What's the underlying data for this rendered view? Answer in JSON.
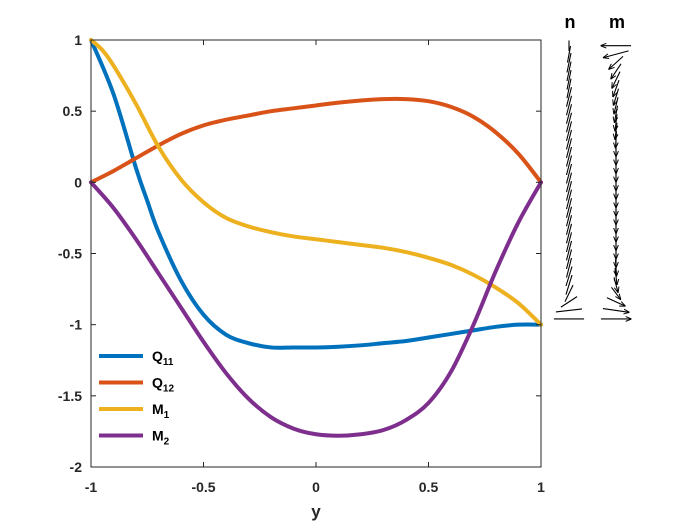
{
  "chart_data": {
    "type": "line",
    "title": "",
    "xlabel": "y",
    "ylabel": "",
    "xlim": [
      -1,
      1
    ],
    "ylim": [
      -2,
      1
    ],
    "xticks": [
      -1,
      -0.5,
      0,
      0.5,
      1
    ],
    "yticks": [
      1,
      0.5,
      0,
      -0.5,
      -1,
      -1.5,
      -2
    ],
    "xtick_labels": [
      "-1",
      "-0.5",
      "0",
      "0.5",
      "1"
    ],
    "ytick_labels": [
      "1",
      "0.5",
      "0",
      "-0.5",
      "-1",
      "-1.5",
      "-2"
    ],
    "grid": false,
    "legend_position": "bottom-left",
    "series": [
      {
        "name": "Q",
        "sub": "11",
        "color": "#0072BD",
        "x": [
          -1,
          -0.9,
          -0.8,
          -0.75,
          -0.7,
          -0.6,
          -0.5,
          -0.4,
          -0.3,
          -0.2,
          -0.1,
          0,
          0.1,
          0.2,
          0.3,
          0.4,
          0.5,
          0.6,
          0.7,
          0.8,
          0.9,
          1
        ],
        "y": [
          1,
          0.62,
          0.1,
          -0.13,
          -0.35,
          -0.69,
          -0.93,
          -1.07,
          -1.13,
          -1.16,
          -1.16,
          -1.16,
          -1.155,
          -1.145,
          -1.13,
          -1.115,
          -1.09,
          -1.065,
          -1.04,
          -1.015,
          -1.0,
          -1.0
        ]
      },
      {
        "name": "Q",
        "sub": "12",
        "color": "#D95319",
        "x": [
          -1,
          -0.9,
          -0.8,
          -0.7,
          -0.6,
          -0.5,
          -0.4,
          -0.3,
          -0.2,
          -0.1,
          0,
          0.1,
          0.2,
          0.3,
          0.4,
          0.5,
          0.6,
          0.7,
          0.8,
          0.9,
          1
        ],
        "y": [
          0,
          0.08,
          0.17,
          0.26,
          0.34,
          0.4,
          0.44,
          0.47,
          0.5,
          0.52,
          0.54,
          0.56,
          0.575,
          0.585,
          0.585,
          0.57,
          0.53,
          0.46,
          0.35,
          0.2,
          0
        ]
      },
      {
        "name": "M",
        "sub": "1",
        "color": "#EDB120",
        "x": [
          -1,
          -0.95,
          -0.9,
          -0.8,
          -0.7,
          -0.6,
          -0.5,
          -0.4,
          -0.3,
          -0.2,
          -0.1,
          0,
          0.1,
          0.2,
          0.3,
          0.4,
          0.5,
          0.6,
          0.7,
          0.8,
          0.9,
          1
        ],
        "y": [
          1,
          0.93,
          0.82,
          0.55,
          0.25,
          0.02,
          -0.14,
          -0.25,
          -0.31,
          -0.35,
          -0.38,
          -0.4,
          -0.42,
          -0.44,
          -0.46,
          -0.49,
          -0.53,
          -0.58,
          -0.65,
          -0.74,
          -0.85,
          -1.0
        ]
      },
      {
        "name": "M",
        "sub": "2",
        "color": "#7E2F8E",
        "x": [
          -1,
          -0.9,
          -0.8,
          -0.7,
          -0.6,
          -0.5,
          -0.4,
          -0.3,
          -0.2,
          -0.1,
          0,
          0.1,
          0.2,
          0.3,
          0.4,
          0.5,
          0.6,
          0.7,
          0.8,
          0.9,
          1
        ],
        "y": [
          0,
          -0.18,
          -0.4,
          -0.64,
          -0.88,
          -1.12,
          -1.34,
          -1.52,
          -1.65,
          -1.73,
          -1.77,
          -1.78,
          -1.77,
          -1.74,
          -1.67,
          -1.55,
          -1.33,
          -1.0,
          -0.62,
          -0.28,
          0
        ]
      }
    ]
  },
  "side_panels": [
    {
      "title": "n",
      "arrows": [
        {
          "y": 0.96,
          "dx": 0,
          "dy": 0.07,
          "head": false
        },
        {
          "y": 0.9,
          "dx": 0.003,
          "dy": 0.11,
          "head": false
        },
        {
          "y": 0.84,
          "dx": 0.004,
          "dy": 0.13,
          "head": false
        },
        {
          "y": 0.78,
          "dx": 0.004,
          "dy": 0.13,
          "head": false
        },
        {
          "y": 0.72,
          "dx": 0.004,
          "dy": 0.13,
          "head": false
        },
        {
          "y": 0.66,
          "dx": 0.004,
          "dy": 0.13,
          "head": false
        },
        {
          "y": 0.6,
          "dx": 0.005,
          "dy": 0.13,
          "head": false
        },
        {
          "y": 0.54,
          "dx": 0.005,
          "dy": 0.13,
          "head": false
        },
        {
          "y": 0.48,
          "dx": 0.005,
          "dy": 0.13,
          "head": false
        },
        {
          "y": 0.42,
          "dx": 0.005,
          "dy": 0.13,
          "head": false
        },
        {
          "y": 0.36,
          "dx": 0.005,
          "dy": 0.13,
          "head": false
        },
        {
          "y": 0.3,
          "dx": 0.005,
          "dy": 0.13,
          "head": false
        },
        {
          "y": 0.24,
          "dx": 0.005,
          "dy": 0.13,
          "head": false
        },
        {
          "y": 0.18,
          "dx": 0.005,
          "dy": 0.13,
          "head": false
        },
        {
          "y": 0.12,
          "dx": 0.005,
          "dy": 0.13,
          "head": false
        },
        {
          "y": 0.06,
          "dx": 0.005,
          "dy": 0.13,
          "head": false
        },
        {
          "y": 0.0,
          "dx": 0.005,
          "dy": 0.13,
          "head": false
        },
        {
          "y": -0.06,
          "dx": 0.005,
          "dy": 0.13,
          "head": false
        },
        {
          "y": -0.12,
          "dx": 0.005,
          "dy": 0.13,
          "head": false
        },
        {
          "y": -0.18,
          "dx": 0.005,
          "dy": 0.13,
          "head": false
        },
        {
          "y": -0.24,
          "dx": 0.005,
          "dy": 0.13,
          "head": false
        },
        {
          "y": -0.3,
          "dx": 0.005,
          "dy": 0.13,
          "head": false
        },
        {
          "y": -0.36,
          "dx": 0.005,
          "dy": 0.13,
          "head": false
        },
        {
          "y": -0.42,
          "dx": 0.005,
          "dy": 0.13,
          "head": false
        },
        {
          "y": -0.48,
          "dx": 0.005,
          "dy": 0.13,
          "head": false
        },
        {
          "y": -0.54,
          "dx": 0.005,
          "dy": 0.13,
          "head": false
        },
        {
          "y": -0.6,
          "dx": 0.005,
          "dy": 0.13,
          "head": false
        },
        {
          "y": -0.66,
          "dx": 0.006,
          "dy": 0.13,
          "head": false
        },
        {
          "y": -0.72,
          "dx": 0.006,
          "dy": 0.13,
          "head": false
        },
        {
          "y": -0.78,
          "dx": 0.008,
          "dy": 0.11,
          "head": false
        },
        {
          "y": -0.84,
          "dx": 0.016,
          "dy": 0.07,
          "head": false
        },
        {
          "y": -0.9,
          "dx": 0.026,
          "dy": 0.02,
          "head": false
        },
        {
          "y": -0.96,
          "dx": 0.03,
          "dy": 0,
          "head": false
        }
      ]
    },
    {
      "title": "m",
      "arrows": [
        {
          "y": 0.96,
          "dx": -0.03,
          "dy": 0,
          "head": true
        },
        {
          "y": 0.9,
          "dx": -0.025,
          "dy": -0.045,
          "head": true
        },
        {
          "y": 0.84,
          "dx": -0.014,
          "dy": -0.085,
          "head": true
        },
        {
          "y": 0.78,
          "dx": -0.01,
          "dy": -0.1,
          "head": true
        },
        {
          "y": 0.72,
          "dx": -0.008,
          "dy": -0.11,
          "head": true
        },
        {
          "y": 0.66,
          "dx": -0.006,
          "dy": -0.11,
          "head": true
        },
        {
          "y": 0.6,
          "dx": -0.005,
          "dy": -0.11,
          "head": true
        },
        {
          "y": 0.54,
          "dx": -0.004,
          "dy": -0.11,
          "head": true
        },
        {
          "y": 0.48,
          "dx": -0.003,
          "dy": -0.11,
          "head": true
        },
        {
          "y": 0.42,
          "dx": -0.002,
          "dy": -0.11,
          "head": true
        },
        {
          "y": 0.36,
          "dx": -0.002,
          "dy": -0.11,
          "head": true
        },
        {
          "y": 0.3,
          "dx": -0.001,
          "dy": -0.11,
          "head": true
        },
        {
          "y": 0.24,
          "dx": 0,
          "dy": -0.11,
          "head": true
        },
        {
          "y": 0.18,
          "dx": 0,
          "dy": -0.11,
          "head": true
        },
        {
          "y": 0.12,
          "dx": 0,
          "dy": -0.11,
          "head": true
        },
        {
          "y": 0.06,
          "dx": 0,
          "dy": -0.11,
          "head": true
        },
        {
          "y": 0.0,
          "dx": 0,
          "dy": -0.11,
          "head": true
        },
        {
          "y": -0.06,
          "dx": 0,
          "dy": -0.11,
          "head": true
        },
        {
          "y": -0.12,
          "dx": 0,
          "dy": -0.11,
          "head": true
        },
        {
          "y": -0.18,
          "dx": 0,
          "dy": -0.11,
          "head": true
        },
        {
          "y": -0.24,
          "dx": 0,
          "dy": -0.11,
          "head": true
        },
        {
          "y": -0.3,
          "dx": 0,
          "dy": -0.11,
          "head": true
        },
        {
          "y": -0.36,
          "dx": 0,
          "dy": -0.11,
          "head": true
        },
        {
          "y": -0.42,
          "dx": 0,
          "dy": -0.11,
          "head": true
        },
        {
          "y": -0.48,
          "dx": 0,
          "dy": -0.11,
          "head": true
        },
        {
          "y": -0.54,
          "dx": 0,
          "dy": -0.11,
          "head": true
        },
        {
          "y": -0.6,
          "dx": 0.001,
          "dy": -0.11,
          "head": true
        },
        {
          "y": -0.66,
          "dx": 0.002,
          "dy": -0.11,
          "head": true
        },
        {
          "y": -0.72,
          "dx": 0.004,
          "dy": -0.1,
          "head": true
        },
        {
          "y": -0.78,
          "dx": 0.009,
          "dy": -0.08,
          "head": true
        },
        {
          "y": -0.84,
          "dx": 0.018,
          "dy": -0.055,
          "head": true
        },
        {
          "y": -0.9,
          "dx": 0.026,
          "dy": -0.025,
          "head": true
        },
        {
          "y": -0.96,
          "dx": 0.03,
          "dy": 0,
          "head": true
        }
      ]
    }
  ]
}
